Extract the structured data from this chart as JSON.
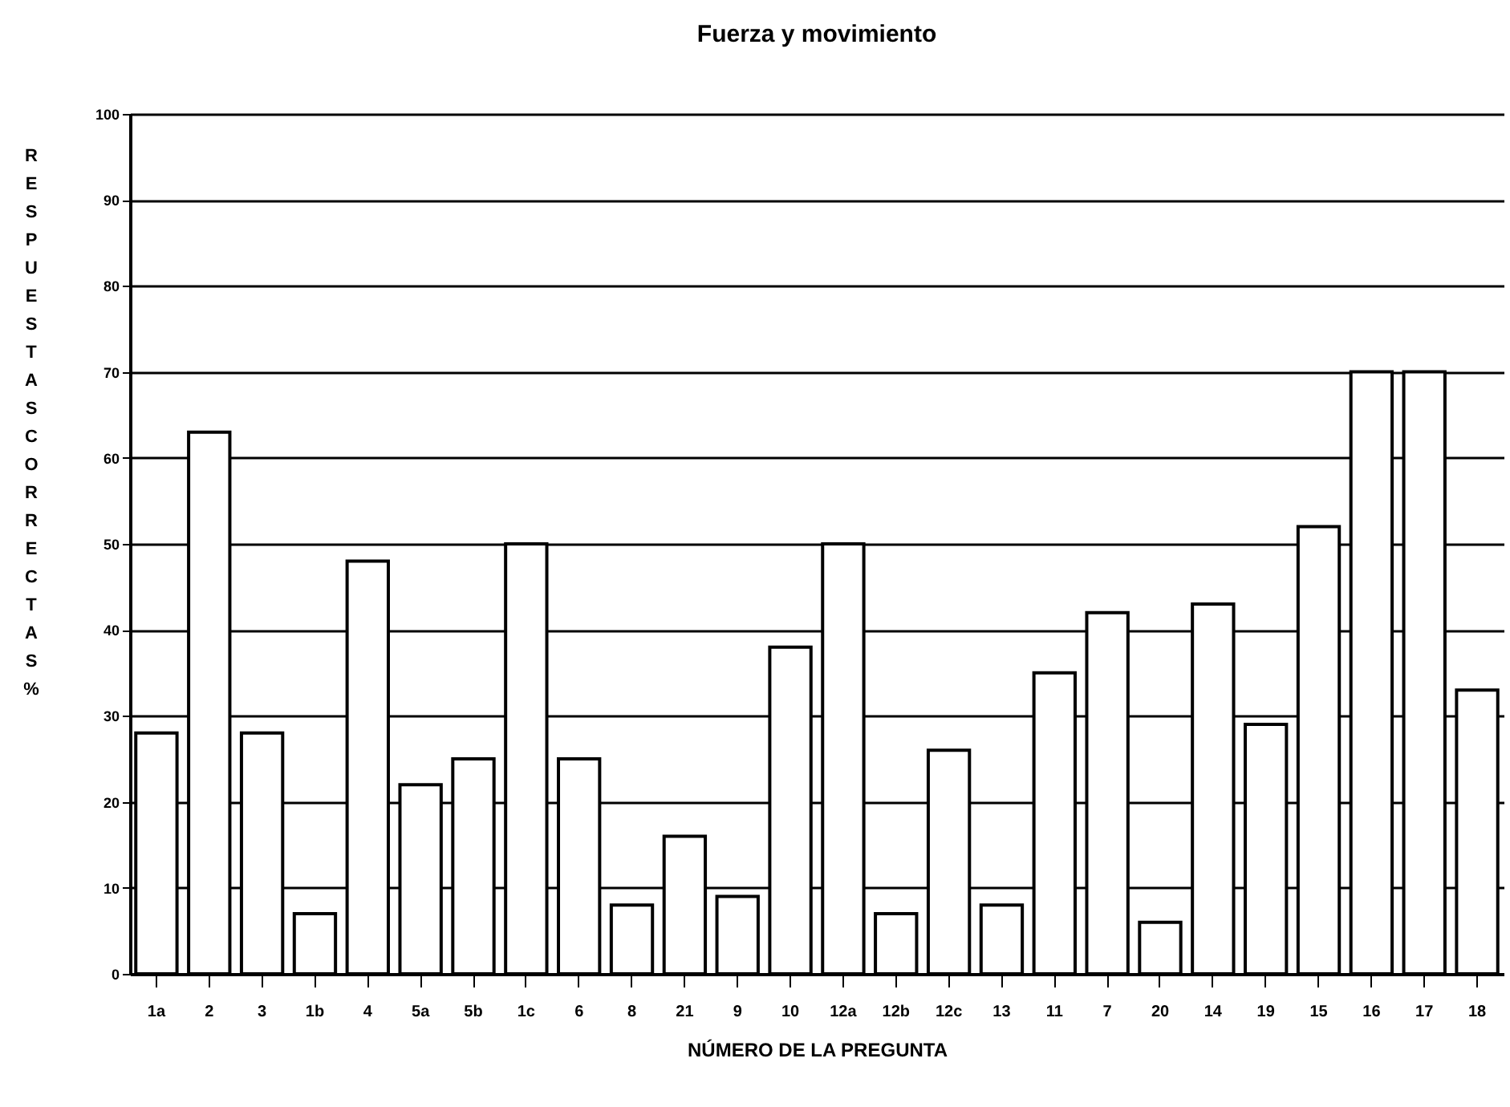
{
  "chart_data": {
    "type": "bar",
    "title": "Fuerza y movimiento",
    "xlabel": "NÚMERO DE LA PREGUNTA",
    "ylabel": "RESPUESTAS CORRECTAS %",
    "categories": [
      "1a",
      "2",
      "3",
      "1b",
      "4",
      "5a",
      "5b",
      "1c",
      "6",
      "8",
      "21",
      "9",
      "10",
      "12a",
      "12b",
      "12c",
      "13",
      "11",
      "7",
      "20",
      "14",
      "19",
      "15",
      "16",
      "17",
      "18"
    ],
    "values": [
      28,
      63,
      28,
      7,
      48,
      22,
      25,
      50,
      25,
      8,
      16,
      9,
      38,
      50,
      7,
      26,
      8,
      35,
      42,
      6,
      43,
      29,
      52,
      70,
      70,
      33
    ],
    "color": "#ffffff",
    "ylim": [
      0,
      100
    ],
    "yticks": [
      0,
      10,
      20,
      30,
      40,
      50,
      60,
      70,
      80,
      90,
      100
    ],
    "grid": "y"
  }
}
